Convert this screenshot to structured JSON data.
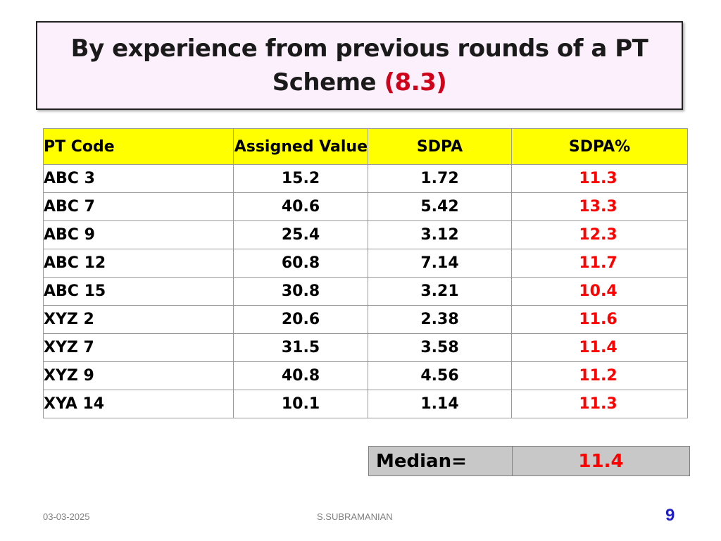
{
  "title": {
    "main": "By experience from previous rounds of a PT Scheme",
    "accent": "(8.3)"
  },
  "table": {
    "headers": [
      "PT Code",
      "Assigned Value",
      "SDPA",
      "SDPA%"
    ],
    "rows": [
      [
        "ABC 3",
        "15.2",
        "1.72",
        "11.3"
      ],
      [
        "ABC 7",
        "40.6",
        "5.42",
        "13.3"
      ],
      [
        "ABC 9",
        "25.4",
        "3.12",
        "12.3"
      ],
      [
        "ABC 12",
        "60.8",
        "7.14",
        "11.7"
      ],
      [
        "ABC 15",
        "30.8",
        "3.21",
        "10.4"
      ],
      [
        "XYZ 2",
        "20.6",
        "2.38",
        "11.6"
      ],
      [
        "XYZ 7",
        "31.5",
        "3.58",
        "11.4"
      ],
      [
        "XYZ 9",
        "40.8",
        "4.56",
        "11.2"
      ],
      [
        "XYA 14",
        "10.1",
        "1.14",
        "11.3"
      ]
    ],
    "colors": {
      "header_bg": "#ffff00",
      "sdpa_pct_text": "#ff0000"
    }
  },
  "median": {
    "label": "Median=",
    "value": "11.4",
    "bg": "#c8c8c8"
  },
  "footer": {
    "date": "03-03-2025",
    "author": "S.SUBRAMANIAN",
    "slide_number": "9"
  }
}
